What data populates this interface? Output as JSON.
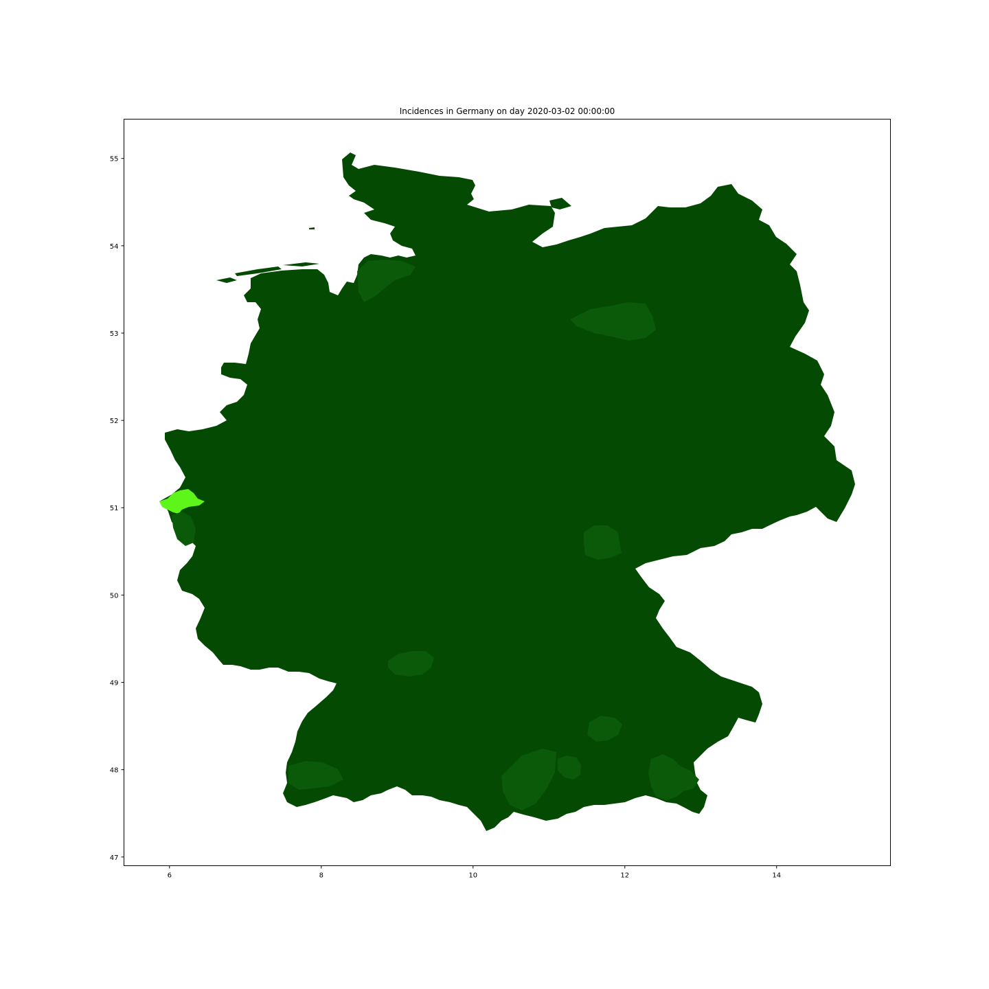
{
  "chart_data": {
    "type": "map",
    "title": "Incidences in Germany on day 2020-03-02 00:00:00",
    "xlabel": "",
    "ylabel": "",
    "xlim": [
      5.4,
      15.5
    ],
    "ylim": [
      46.9,
      55.45
    ],
    "x_ticks": [
      "6",
      "8",
      "10",
      "12",
      "14"
    ],
    "y_ticks": [
      "47",
      "48",
      "49",
      "50",
      "51",
      "52",
      "53",
      "54",
      "55"
    ],
    "grid": false,
    "base_color": "#044a02",
    "regions": [
      {
        "value_level": "high",
        "color": "#5ef51a",
        "lon": 6.15,
        "lat": 51.05
      },
      {
        "value_level": "low",
        "color": "#0a5a0a",
        "lon": 12.6,
        "lat": 47.8
      },
      {
        "value_level": "low",
        "color": "#0a5a0a",
        "lon": 11.3,
        "lat": 47.95
      },
      {
        "value_level": "low",
        "color": "#0a5a0a",
        "lon": 11.6,
        "lat": 48.35
      },
      {
        "value_level": "low",
        "color": "#0a5a0a",
        "lon": 11.75,
        "lat": 53.1
      },
      {
        "value_level": "low",
        "color": "#0a5a0a",
        "lon": 11.7,
        "lat": 50.75
      },
      {
        "value_level": "low",
        "color": "#0a5a0a",
        "lon": 8.55,
        "lat": 53.5
      },
      {
        "value_level": "low",
        "color": "#0a5a0a",
        "lon": 9.15,
        "lat": 49.2
      },
      {
        "value_level": "low",
        "color": "#0a5a0a",
        "lon": 7.7,
        "lat": 47.85
      }
    ]
  }
}
